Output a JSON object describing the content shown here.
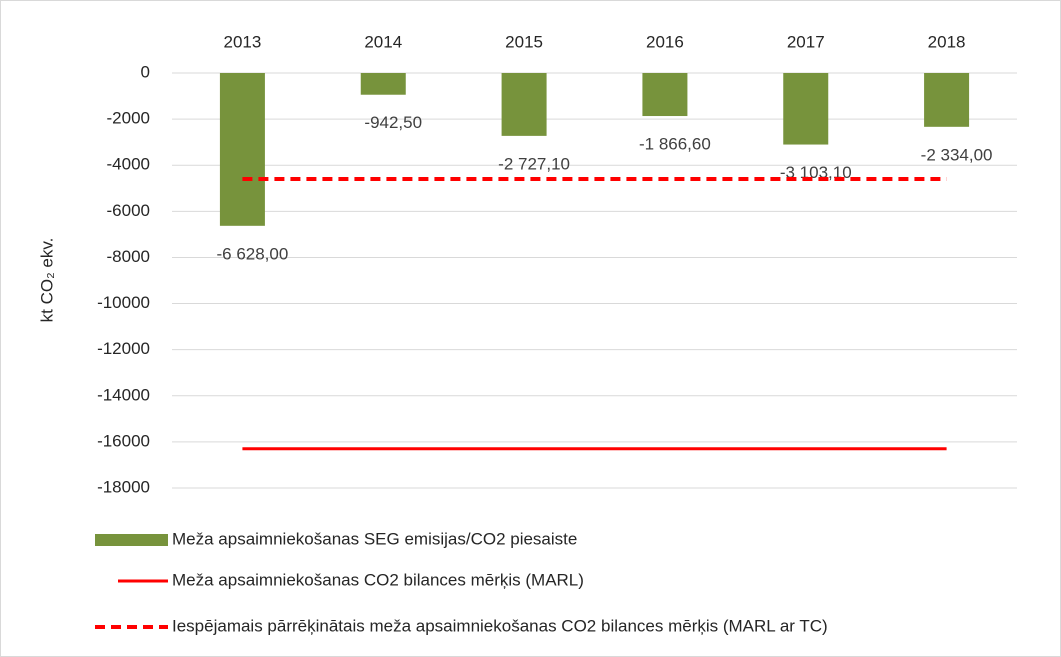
{
  "chart_data": {
    "type": "bar",
    "categories": [
      "2013",
      "2014",
      "2015",
      "2016",
      "2017",
      "2018"
    ],
    "y_label": "kt CO₂ ekv.",
    "ylim": [
      -18000,
      0
    ],
    "yticks": [
      0,
      -2000,
      -4000,
      -6000,
      -8000,
      -10000,
      -12000,
      -14000,
      -16000,
      -18000
    ],
    "grid": true,
    "legend": "bottom",
    "series": [
      {
        "name": "Meža apsaimniekošanas SEG emisijas/CO2 piesaiste",
        "type": "bar",
        "color": "#77933c",
        "values": [
          -6628,
          -942.5,
          -2727.1,
          -1866.6,
          -3103.1,
          -2334
        ],
        "value_labels": [
          "-6 628,00",
          "-942,50",
          "-2 727,10",
          "-1 866,60",
          "-3 103,10",
          "-2 334,00"
        ]
      },
      {
        "name": "Meža apsaimniekošanas CO2 bilances mērķis (MARL)",
        "type": "line",
        "color": "#ff0000",
        "dashed": false,
        "values": [
          -16300,
          -16300,
          -16300,
          -16300,
          -16300,
          -16300
        ]
      },
      {
        "name": "Iespējamais pārrēķinātais meža apsaimniekošanas CO2 bilances mērķis (MARL ar TC)",
        "type": "line",
        "color": "#ff0000",
        "dashed": true,
        "values": [
          -4600,
          -4600,
          -4600,
          -4600,
          -4600,
          -4600
        ]
      }
    ]
  }
}
